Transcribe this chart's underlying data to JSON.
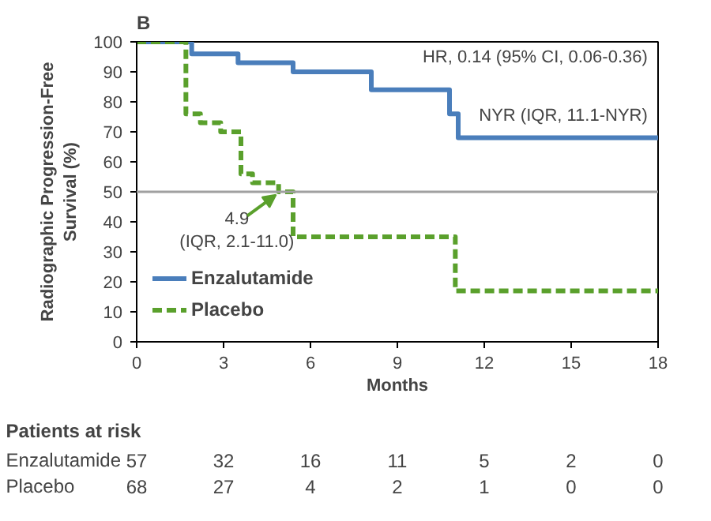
{
  "chart_data": {
    "type": "step",
    "title": "B",
    "xlabel": "Months",
    "ylabel": "Radiographic Progression-Free\nSurvival (%)",
    "series": [
      {
        "name": "Enzalutamide",
        "color": "#4a7ebb",
        "line_style": "solid",
        "x": [
          0,
          1.9,
          3.5,
          5.4,
          8.1,
          10.8,
          11.1,
          18
        ],
        "values": [
          100,
          96,
          93,
          90,
          84,
          76,
          68,
          68
        ]
      },
      {
        "name": "Placebo",
        "color": "#5aa02c",
        "line_style": "dashed",
        "x": [
          0,
          1.7,
          2.2,
          2.9,
          3.6,
          4.0,
          4.9,
          5.4,
          11.0,
          18
        ],
        "values": [
          100,
          76,
          73,
          70,
          56,
          53,
          50,
          35,
          17,
          17
        ]
      }
    ],
    "xlim": [
      0,
      18
    ],
    "xticks": [
      0,
      3,
      6,
      9,
      12,
      15,
      18
    ],
    "ylim": [
      0,
      100
    ],
    "yticks": [
      0,
      10,
      20,
      30,
      40,
      50,
      60,
      70,
      80,
      90,
      100
    ],
    "ref_lines": [
      {
        "axis": "y",
        "value": 50,
        "color": "#a0a0a0"
      }
    ],
    "legend": "bottom left",
    "grid": false,
    "annotations": [
      "HR, 0.14 (95% CI, 0.06-0.36)",
      "NYR (IQR, 11.1-NYR)",
      {
        "text": "4.9\n(IQR, 2.1-11.0)",
        "x": 4.9,
        "y": 50
      },
      "Patients at risk",
      "Enzalutamide 57 32 16 11 5 2 0",
      "Placebo 68 27 4 2 1 0 0"
    ]
  }
}
